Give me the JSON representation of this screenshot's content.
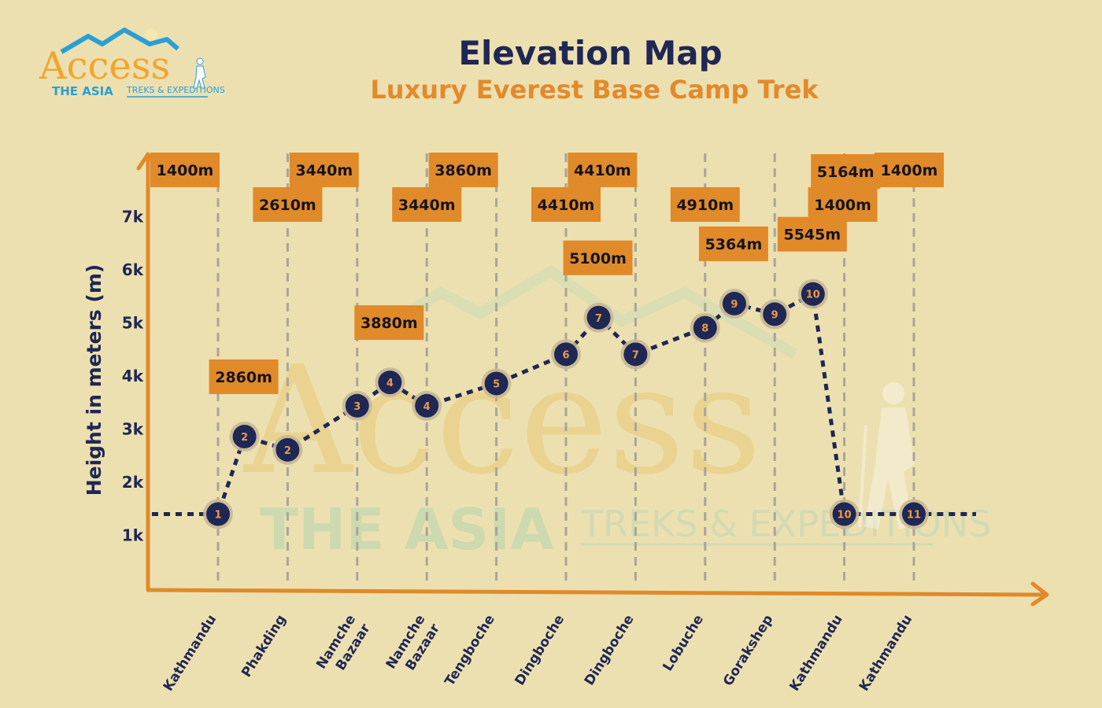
{
  "brand": {
    "logo_text": "Access",
    "logo_sub": "THE ASIA",
    "logo_tagline": "TREKS & EXPEDITIONS"
  },
  "colors": {
    "background": "#ede0b0",
    "axis": "#e08a2a",
    "navy": "#1f2754",
    "label_box": "#e08a2a",
    "day_text": "#e89a4a",
    "gridline": "#a8a59a"
  },
  "chart_data": {
    "type": "line",
    "title": "Elevation Map",
    "subtitle": "Luxury Everest Base Camp Trek",
    "ylabel": "Height in meters (m)",
    "xlabel": "",
    "ylim": [
      0,
      8000
    ],
    "y_ticks": [
      "1k",
      "2k",
      "3k",
      "4k",
      "5k",
      "6k",
      "7k"
    ],
    "y_tick_values": [
      1000,
      2000,
      3000,
      4000,
      5000,
      6000,
      7000
    ],
    "grid": "vertical dashed",
    "categories": [
      "Kathmandu",
      "Phakding",
      "Namche Bazaar",
      "Namche Bazaar",
      "Tengboche",
      "Dingboche",
      "Dingboche",
      "Lobuche",
      "Gorakshep",
      "Kathmandu",
      "Kathmandu"
    ],
    "category_labels": [
      [
        "Kathmandu"
      ],
      [
        "Phakding"
      ],
      [
        "Namche",
        "Bazaar"
      ],
      [
        "Namche",
        "Bazaar"
      ],
      [
        "Tengboche"
      ],
      [
        "Dingboche"
      ],
      [
        "Dingboche"
      ],
      [
        "Lobuche"
      ],
      [
        "Gorakshep"
      ],
      [
        "Kathmandu"
      ],
      [
        "Kathmandu"
      ]
    ],
    "top_labels": [
      "1400m",
      "2610m",
      "3440m",
      "3440m",
      "3860m",
      "4410m",
      "4410m",
      "4910m",
      "5164m",
      "1400m",
      "1400m"
    ],
    "points": [
      {
        "day": "1",
        "x": 0,
        "y": 1400
      },
      {
        "day": "2",
        "x": 0.38,
        "y": 2860,
        "label": "2860m"
      },
      {
        "day": "2",
        "x": 1,
        "y": 2610
      },
      {
        "day": "3",
        "x": 2,
        "y": 3440
      },
      {
        "day": "4",
        "x": 2.47,
        "y": 3880,
        "label": "3880m"
      },
      {
        "day": "4",
        "x": 3,
        "y": 3440
      },
      {
        "day": "5",
        "x": 4,
        "y": 3860
      },
      {
        "day": "6",
        "x": 5,
        "y": 4410
      },
      {
        "day": "7",
        "x": 5.47,
        "y": 5100,
        "label": "5100m"
      },
      {
        "day": "7",
        "x": 6,
        "y": 4410
      },
      {
        "day": "8",
        "x": 7,
        "y": 4910
      },
      {
        "day": "9",
        "x": 7.42,
        "y": 5364,
        "label": "5364m"
      },
      {
        "day": "9",
        "x": 8,
        "y": 5164
      },
      {
        "day": "10",
        "x": 8.55,
        "y": 5545,
        "label": "5545m"
      },
      {
        "day": "10",
        "x": 9,
        "y": 1400
      },
      {
        "day": "11",
        "x": 10,
        "y": 1400
      }
    ]
  }
}
